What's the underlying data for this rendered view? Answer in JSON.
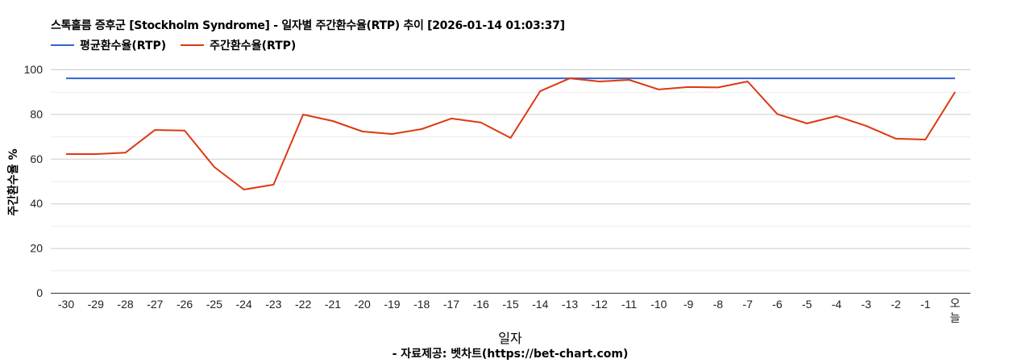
{
  "header": {
    "title": "스톡홀름 증후군 [Stockholm Syndrome] - 일자별 주간환수율(RTP) 추이 [2026-01-14 01:03:37]"
  },
  "legend": {
    "items": [
      {
        "label": "평균환수율(RTP)",
        "color": "#3366cc"
      },
      {
        "label": "주간환수율(RTP)",
        "color": "#dc3912"
      }
    ]
  },
  "axes": {
    "ylabel": "주간환수율 %",
    "xlabel": "일자",
    "credit": "- 자료제공: 벳차트(https://bet-chart.com)"
  },
  "chart_data": {
    "type": "line",
    "title": "스톡홀름 증후군 [Stockholm Syndrome] - 일자별 주간환수율(RTP) 추이 [2026-01-14 01:03:37]",
    "xlabel": "일자",
    "ylabel": "주간환수율 %",
    "ylim": [
      0,
      100
    ],
    "yticks": [
      0,
      20,
      40,
      60,
      80,
      100
    ],
    "grid": true,
    "legend_position": "top",
    "categories": [
      "-30",
      "-29",
      "-28",
      "-27",
      "-26",
      "-25",
      "-24",
      "-23",
      "-22",
      "-21",
      "-20",
      "-19",
      "-18",
      "-17",
      "-16",
      "-15",
      "-14",
      "-13",
      "-12",
      "-11",
      "-10",
      "-9",
      "-8",
      "-7",
      "-6",
      "-5",
      "-4",
      "-3",
      "-2",
      "-1",
      "오늘"
    ],
    "series": [
      {
        "name": "평균환수율(RTP)",
        "color": "#3366cc",
        "values": [
          96,
          96,
          96,
          96,
          96,
          96,
          96,
          96,
          96,
          96,
          96,
          96,
          96,
          96,
          96,
          96,
          96,
          96,
          96,
          96,
          96,
          96,
          96,
          96,
          96,
          96,
          96,
          96,
          96,
          96,
          96
        ]
      },
      {
        "name": "주간환수율(RTP)",
        "color": "#dc3912",
        "values": [
          62.1,
          62.1,
          62.7,
          72.9,
          72.6,
          56.3,
          46.2,
          48.4,
          79.8,
          76.9,
          72.2,
          71.1,
          73.3,
          78.0,
          76.2,
          69.3,
          90.3,
          96.0,
          94.6,
          95.3,
          91.0,
          92.1,
          91.9,
          94.6,
          80.0,
          75.8,
          79.1,
          74.7,
          69.0,
          68.6,
          89.9
        ]
      }
    ],
    "annotations": [
      "- 자료제공: 벳차트(https://bet-chart.com)"
    ]
  }
}
